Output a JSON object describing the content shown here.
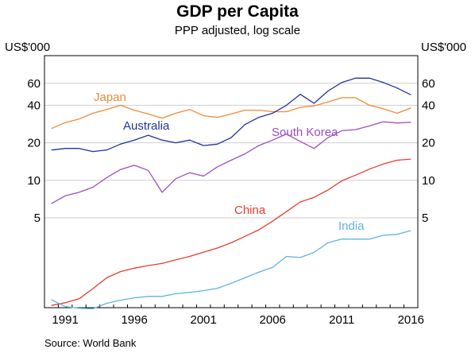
{
  "chart_data": {
    "type": "line",
    "title": "GDP per Capita",
    "subtitle": "PPP adjusted, log scale",
    "unit_label": "US$'000",
    "source": "Source:  World Bank",
    "scale": "log",
    "ylim": [
      0.95,
      100
    ],
    "xlim": [
      1990,
      2017
    ],
    "yticks": [
      5,
      10,
      20,
      40,
      60
    ],
    "xticks": [
      1991,
      1996,
      2001,
      2006,
      2011,
      2016
    ],
    "grid": true,
    "colors": {
      "Japan": "#f08a36",
      "Australia": "#22339a",
      "South Korea": "#9b4fc2",
      "China": "#e53e2e",
      "India": "#5fb4df",
      "grid": "#cfcfcf"
    },
    "series": [
      {
        "name": "Japan",
        "x": [
          1990,
          1991,
          1992,
          1993,
          1994,
          1995,
          1996,
          1997,
          1998,
          1999,
          2000,
          2001,
          2002,
          2003,
          2004,
          2005,
          2006,
          2007,
          2008,
          2009,
          2010,
          2011,
          2012,
          2013,
          2014,
          2015,
          2016
        ],
        "values": [
          26,
          29,
          31,
          34.5,
          37,
          40,
          36.5,
          34,
          31.5,
          34.5,
          37,
          33,
          32,
          34,
          36.5,
          36.5,
          35.5,
          35.5,
          38.5,
          39.5,
          42.5,
          46,
          46,
          40,
          37.5,
          34.5,
          38
        ]
      },
      {
        "name": "Australia",
        "x": [
          1990,
          1991,
          1992,
          1993,
          1994,
          1995,
          1996,
          1997,
          1998,
          1999,
          2000,
          2001,
          2002,
          2003,
          2004,
          2005,
          2006,
          2007,
          2008,
          2009,
          2010,
          2011,
          2012,
          2013,
          2014,
          2015,
          2016
        ],
        "values": [
          17.5,
          18,
          18,
          17,
          17.5,
          19.5,
          21,
          23,
          21,
          20,
          21,
          19,
          19.5,
          22,
          28,
          32,
          34.5,
          40,
          49,
          41.5,
          52,
          61,
          66,
          66,
          61,
          55,
          48.5
        ]
      },
      {
        "name": "South Korea",
        "x": [
          1990,
          1991,
          1992,
          1993,
          1994,
          1995,
          1996,
          1997,
          1998,
          1999,
          2000,
          2001,
          2002,
          2003,
          2004,
          2005,
          2006,
          2007,
          2008,
          2009,
          2010,
          2011,
          2012,
          2013,
          2014,
          2015,
          2016
        ],
        "values": [
          6.5,
          7.5,
          8,
          8.8,
          10.5,
          12.2,
          13.2,
          12,
          8,
          10.3,
          11.5,
          10.8,
          12.8,
          14.5,
          16.3,
          19,
          21,
          23.5,
          20.5,
          18,
          22,
          25,
          25.5,
          27.3,
          29.5,
          28.8,
          29.2
        ]
      },
      {
        "name": "China",
        "x": [
          1990,
          1991,
          1992,
          1993,
          1994,
          1995,
          1996,
          1997,
          1998,
          1999,
          2000,
          2001,
          2002,
          2003,
          2004,
          2005,
          2006,
          2007,
          2008,
          2009,
          2010,
          2011,
          2012,
          2013,
          2014,
          2015,
          2016
        ],
        "values": [
          0.99,
          1.04,
          1.12,
          1.35,
          1.65,
          1.85,
          1.97,
          2.07,
          2.15,
          2.3,
          2.45,
          2.65,
          2.86,
          3.15,
          3.55,
          4,
          4.7,
          5.6,
          6.7,
          7.3,
          8.35,
          9.9,
          11,
          12.3,
          13.5,
          14.5,
          14.8
        ]
      },
      {
        "name": "India",
        "x": [
          1990,
          1991,
          1992,
          1993,
          1994,
          1995,
          1996,
          1997,
          1998,
          1999,
          2000,
          2001,
          2002,
          2003,
          2004,
          2005,
          2006,
          2007,
          2008,
          2009,
          2010,
          2011,
          2012,
          2013,
          2014,
          2015,
          2016
        ],
        "values": [
          1.1,
          0.97,
          0.94,
          0.93,
          1.03,
          1.09,
          1.14,
          1.17,
          1.17,
          1.23,
          1.26,
          1.3,
          1.36,
          1.49,
          1.65,
          1.83,
          2,
          2.45,
          2.4,
          2.64,
          3.15,
          3.38,
          3.37,
          3.37,
          3.62,
          3.68,
          3.95
        ]
      }
    ]
  }
}
